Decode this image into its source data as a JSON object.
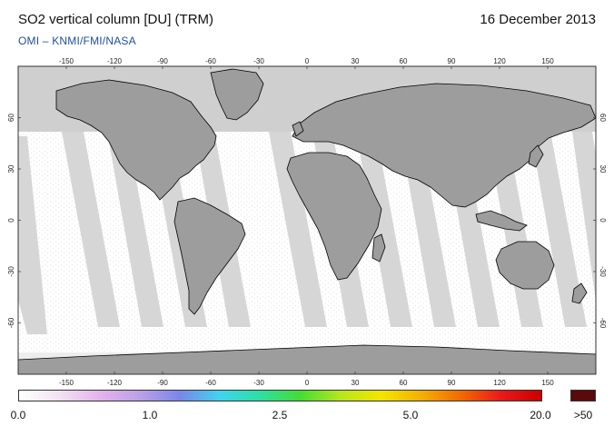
{
  "header": {
    "title": "SO2 vertical column [DU] (TRM)",
    "date": "16 December 2013",
    "source": "OMI  –  KNMI/FMI/NASA"
  },
  "map": {
    "projection": "equirectangular",
    "lon_ticks": [
      "-150",
      "-120",
      "-90",
      "-60",
      "-30",
      "0",
      "30",
      "60",
      "90",
      "120",
      "150"
    ],
    "lat_ticks": [
      "60",
      "30",
      "0",
      "-30",
      "-60"
    ],
    "colors": {
      "no_data_polar": "#cfcfcf",
      "land": "#9d9d9d",
      "coverage_gap": "#d6d6d6",
      "background": "#ffffff",
      "coast": "#000000"
    }
  },
  "colorbar": {
    "labels": [
      "0.0",
      "1.0",
      "2.5",
      "5.0",
      "20.0"
    ],
    "over_label": ">50",
    "over_color": "#5a0a0a",
    "stops": [
      "#ffffff",
      "#f2e2f2",
      "#e4b4ec",
      "#bba0e6",
      "#7b86ea",
      "#3fd4f0",
      "#2ee0a0",
      "#44dd33",
      "#b6e61e",
      "#f3e600",
      "#f5b000",
      "#f26a00",
      "#e81a1a",
      "#c80000"
    ]
  }
}
